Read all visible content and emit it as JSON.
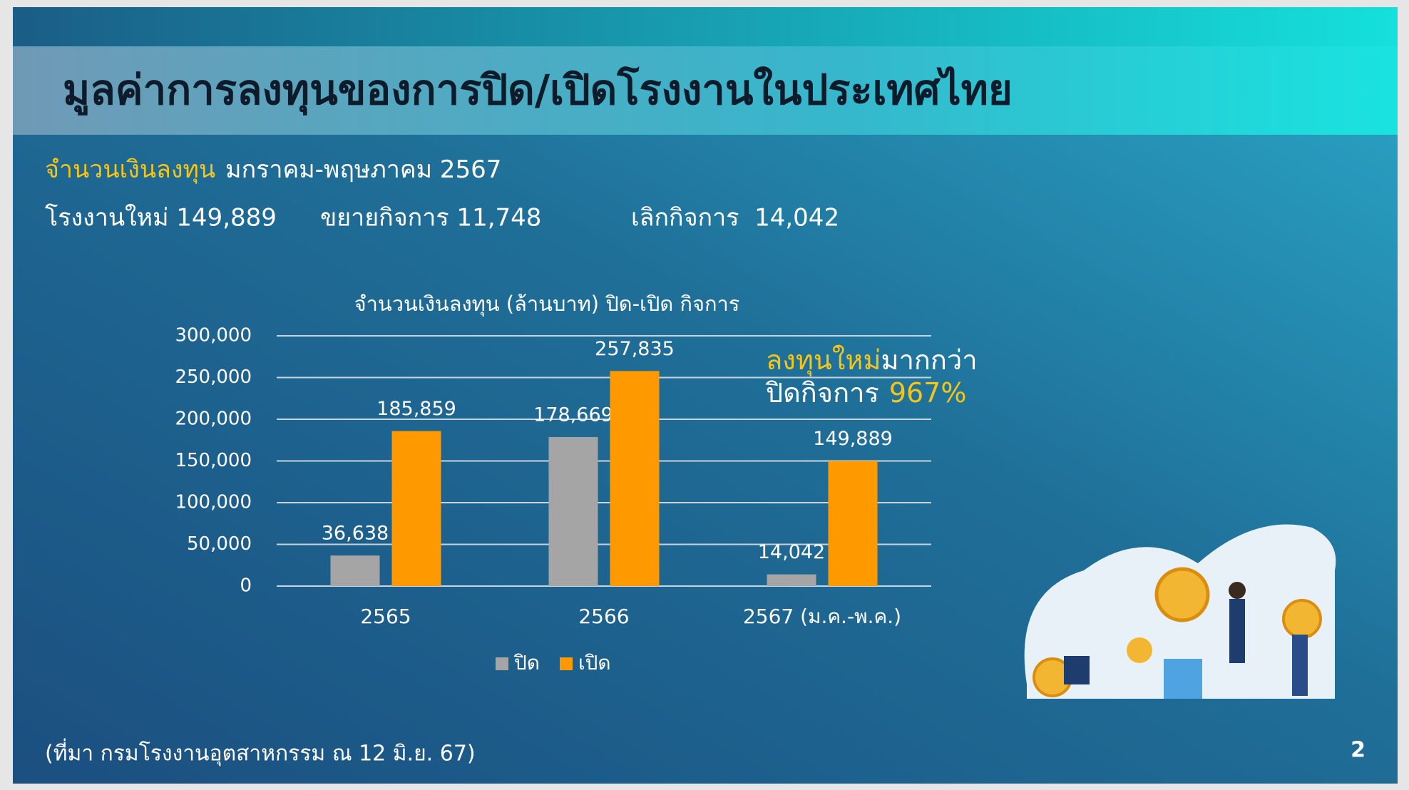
{
  "slide": {
    "title": "มูลค่าการลงทุนของการปิด/เปิดโรงงานในประเทศไทย",
    "subtitle_highlight": "จำนวนเงินลงทุน",
    "subtitle": "มกราคม-พฤษภาคม 2567",
    "stats": [
      "โรงงานใหม่ 149,889",
      "ขยายกิจการ 11,748",
      "เลิกกิจการ  14,042"
    ],
    "callout_highlight": "ลงทุนใหม่",
    "callout_rest": "มากกว่า",
    "callout_line2": "ปิดกิจการ",
    "callout_percent": "967%",
    "source": "(ที่มา กรมโรงงานอุตสาหกรรม ณ 12 มิ.ย. 67)",
    "page_number": "2"
  },
  "chart_data": {
    "type": "bar",
    "title": "จำนวนเงินลงทุน (ล้านบาท) ปิด-เปิด กิจการ",
    "categories": [
      "2565",
      "2566",
      "2567 (ม.ค.-พ.ค.)"
    ],
    "series": [
      {
        "name": "ปิด",
        "color": "#a5a5a5",
        "values": [
          36638,
          178669,
          14042
        ],
        "value_labels": [
          "36,638",
          "178,669",
          "14,042"
        ]
      },
      {
        "name": "เปิด",
        "color": "#ff9900",
        "values": [
          185859,
          257835,
          149889
        ],
        "value_labels": [
          "185,859",
          "257,835",
          "149,889"
        ]
      }
    ],
    "ylim": [
      0,
      300000
    ],
    "yticks": [
      0,
      {
        "value": 50000,
        "label": "50,000"
      },
      {
        "value": 100000,
        "label": "100,000"
      },
      {
        "value": 150000,
        "label": "150,000"
      },
      {
        "value": 200000,
        "label": "200,000"
      },
      {
        "value": 250000,
        "label": "250,000"
      },
      {
        "value": 300000,
        "label": "300,000"
      }
    ],
    "grid": true,
    "legend": "bottom"
  }
}
